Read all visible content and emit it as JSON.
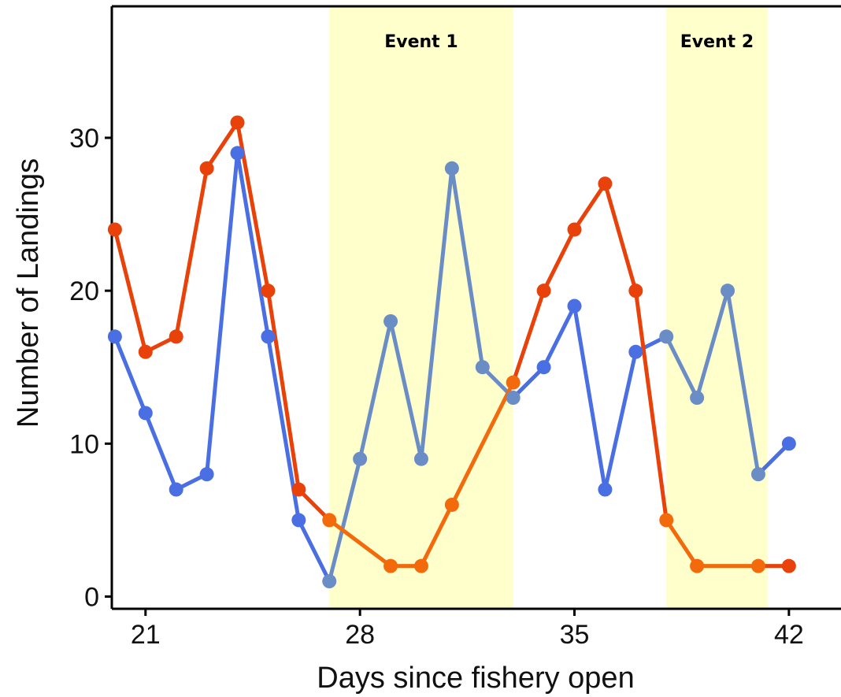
{
  "chart_data": {
    "type": "line",
    "xlabel": "Days since fishery open",
    "ylabel": "Number of Landings",
    "xlim": [
      19.9,
      43.7
    ],
    "ylim": [
      -0.8,
      38.6
    ],
    "xticks": [
      21,
      28,
      35,
      42
    ],
    "yticks": [
      0,
      10,
      20,
      30
    ],
    "grid": false,
    "events": [
      {
        "label": "Event 1",
        "start": 27,
        "end": 33
      },
      {
        "label": "Event 2",
        "start": 38,
        "end": 41.3
      }
    ],
    "colors": {
      "blue_series": "#4a6fe3",
      "blue_series_during_events": "#6b8dc6",
      "red_series": "#e8420a",
      "red_series_during_events": "#f26a0c",
      "event_band": "#ffffcc",
      "axis": "#000000"
    },
    "series": [
      {
        "x": [
          20,
          21,
          22,
          23,
          24,
          25,
          26,
          27,
          28,
          29,
          30,
          31,
          32,
          33,
          34,
          35,
          36,
          37,
          38,
          39,
          40,
          41,
          42
        ],
        "values": [
          17,
          12,
          7,
          8,
          29,
          17,
          5,
          1,
          9,
          18,
          9,
          28,
          15,
          13,
          15,
          19,
          7,
          16,
          17,
          13,
          20,
          8,
          10
        ]
      },
      {
        "x": [
          20,
          21,
          22,
          23,
          24,
          25,
          26,
          27,
          29,
          30,
          31,
          33,
          34,
          35,
          36,
          37,
          38,
          39,
          41,
          42
        ],
        "values": [
          24,
          16,
          17,
          28,
          31,
          20,
          7,
          5,
          2,
          2,
          6,
          14,
          20,
          24,
          27,
          20,
          5,
          2,
          2,
          2
        ]
      }
    ]
  }
}
